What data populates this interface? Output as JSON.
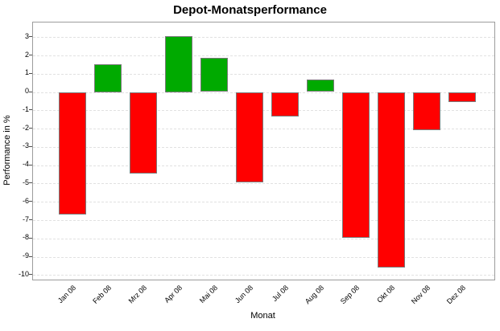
{
  "chart_data": {
    "type": "bar",
    "title": "Depot-Monatsperformance",
    "xlabel": "Monat",
    "ylabel": "Performance in %",
    "categories": [
      "Jan 08",
      "Feb 08",
      "Mrz 08",
      "Apr 08",
      "Mai 08",
      "Jun 08",
      "Jul 08",
      "Aug 08",
      "Sep 08",
      "Okt 08",
      "Nov 08",
      "Dez 08"
    ],
    "values": [
      -6.7,
      1.5,
      -4.45,
      3.05,
      1.85,
      -4.95,
      -1.35,
      0.7,
      -7.95,
      -9.6,
      -2.1,
      -0.55
    ],
    "yticks": [
      3,
      2,
      1,
      0,
      -1,
      -2,
      -3,
      -4,
      -5,
      -6,
      -7,
      -8,
      -9,
      -10
    ],
    "ylim": [
      -10.25,
      3.8
    ],
    "grid": "horizontal-dashed",
    "legend": "none",
    "colors": {
      "positive": "#00AA00",
      "negative": "#FF0000",
      "bar_border": "#7A7A7A",
      "plot_border": "#9C9C9C",
      "gridline": "#E1E1E1",
      "text": "#000000",
      "background": "#FFFFFF"
    }
  }
}
